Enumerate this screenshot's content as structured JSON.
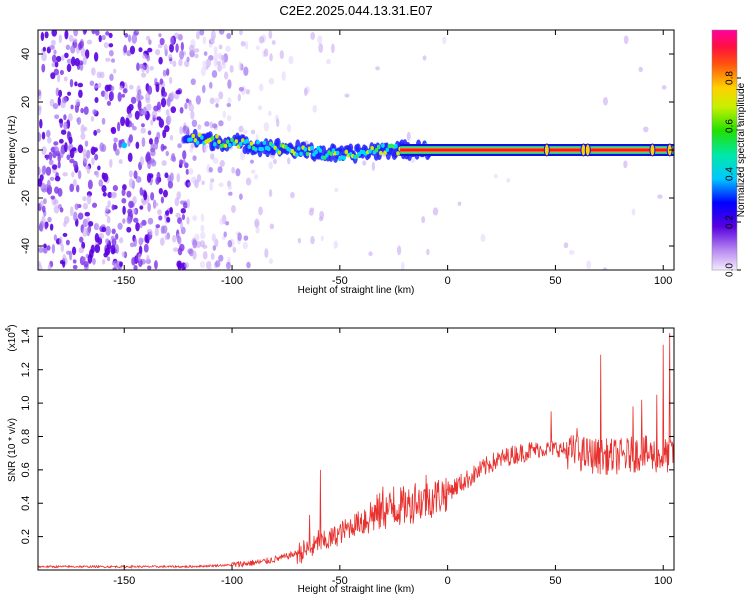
{
  "title": "C2E2.2025.044.13.31.E07",
  "chart_data": [
    {
      "type": "heatmap",
      "name": "spectrogram",
      "xlabel": "Height of straight line (km)",
      "ylabel": "Frequency (Hz)",
      "xlim": [
        -190,
        105
      ],
      "ylim": [
        -50,
        50
      ],
      "xticks": [
        -150,
        -100,
        -50,
        0,
        50,
        100
      ],
      "yticks": [
        -40,
        -20,
        0,
        20,
        40
      ],
      "colorbar": {
        "label": "Normalized spectral amplitude",
        "range": [
          0,
          1
        ],
        "ticks": [
          0.0,
          0.2,
          0.4,
          0.6,
          0.8
        ],
        "tick_labels": [
          "0.0",
          "0.2",
          "0.4",
          "0.6",
          "0.8"
        ]
      },
      "trace": {
        "description_points": [
          {
            "x": -122,
            "y": 5
          },
          {
            "x": -110,
            "y": 4
          },
          {
            "x": -100,
            "y": 3
          },
          {
            "x": -90,
            "y": 2
          },
          {
            "x": -80,
            "y": 1
          },
          {
            "x": -70,
            "y": 0
          },
          {
            "x": -60,
            "y": -1
          },
          {
            "x": -50,
            "y": -2
          },
          {
            "x": -40,
            "y": -1
          },
          {
            "x": -30,
            "y": 0
          },
          {
            "x": -20,
            "y": 0
          },
          {
            "x": -10,
            "y": 0
          },
          {
            "x": 0,
            "y": 0
          },
          {
            "x": 50,
            "y": 0
          },
          {
            "x": 105,
            "y": 0
          }
        ],
        "noise_dot_positions": [
          {
            "x": -150,
            "y": 2
          }
        ]
      }
    },
    {
      "type": "line",
      "name": "snr",
      "xlabel": "Height of straight line (km)",
      "ylabel": "SNR (10 * v/v)",
      "yscale_label": "(x10",
      "yscale_exp": "4",
      "yscale_close": ")",
      "xlim": [
        -190,
        105
      ],
      "ylim": [
        0,
        1.45
      ],
      "xticks": [
        -150,
        -100,
        -50,
        0,
        50,
        100
      ],
      "yticks": [
        0.2,
        0.4,
        0.6,
        0.8,
        1.0,
        1.2,
        1.4
      ],
      "ytick_labels": [
        "0.2",
        "0.4",
        "0.6",
        "0.8",
        "1.0",
        "1.2",
        "1.4"
      ],
      "color": "#e8312e",
      "envelope": [
        {
          "x": -190,
          "y": 0.02
        },
        {
          "x": -120,
          "y": 0.02
        },
        {
          "x": -100,
          "y": 0.03
        },
        {
          "x": -85,
          "y": 0.05
        },
        {
          "x": -75,
          "y": 0.08
        },
        {
          "x": -65,
          "y": 0.12
        },
        {
          "x": -55,
          "y": 0.18
        },
        {
          "x": -45,
          "y": 0.26
        },
        {
          "x": -35,
          "y": 0.33
        },
        {
          "x": -25,
          "y": 0.37
        },
        {
          "x": -15,
          "y": 0.4
        },
        {
          "x": -5,
          "y": 0.44
        },
        {
          "x": 0,
          "y": 0.47
        },
        {
          "x": 10,
          "y": 0.55
        },
        {
          "x": 20,
          "y": 0.64
        },
        {
          "x": 30,
          "y": 0.69
        },
        {
          "x": 40,
          "y": 0.72
        },
        {
          "x": 50,
          "y": 0.73
        },
        {
          "x": 60,
          "y": 0.7
        },
        {
          "x": 70,
          "y": 0.68
        },
        {
          "x": 80,
          "y": 0.68
        },
        {
          "x": 90,
          "y": 0.7
        },
        {
          "x": 100,
          "y": 0.68
        },
        {
          "x": 105,
          "y": 0.7
        }
      ],
      "spikes": [
        {
          "x": -64,
          "y": 0.33
        },
        {
          "x": -60,
          "y": 0.24
        },
        {
          "x": -59,
          "y": 0.6
        },
        {
          "x": -30,
          "y": 0.5
        },
        {
          "x": -25,
          "y": 0.5
        },
        {
          "x": -15,
          "y": 0.52
        },
        {
          "x": -10,
          "y": 0.57
        },
        {
          "x": 48,
          "y": 0.95
        },
        {
          "x": 60,
          "y": 0.85
        },
        {
          "x": 71,
          "y": 1.29
        },
        {
          "x": 86,
          "y": 0.98
        },
        {
          "x": 90,
          "y": 1.02
        },
        {
          "x": 97,
          "y": 1.05
        },
        {
          "x": 100,
          "y": 1.35
        },
        {
          "x": 103,
          "y": 1.42
        }
      ]
    }
  ]
}
